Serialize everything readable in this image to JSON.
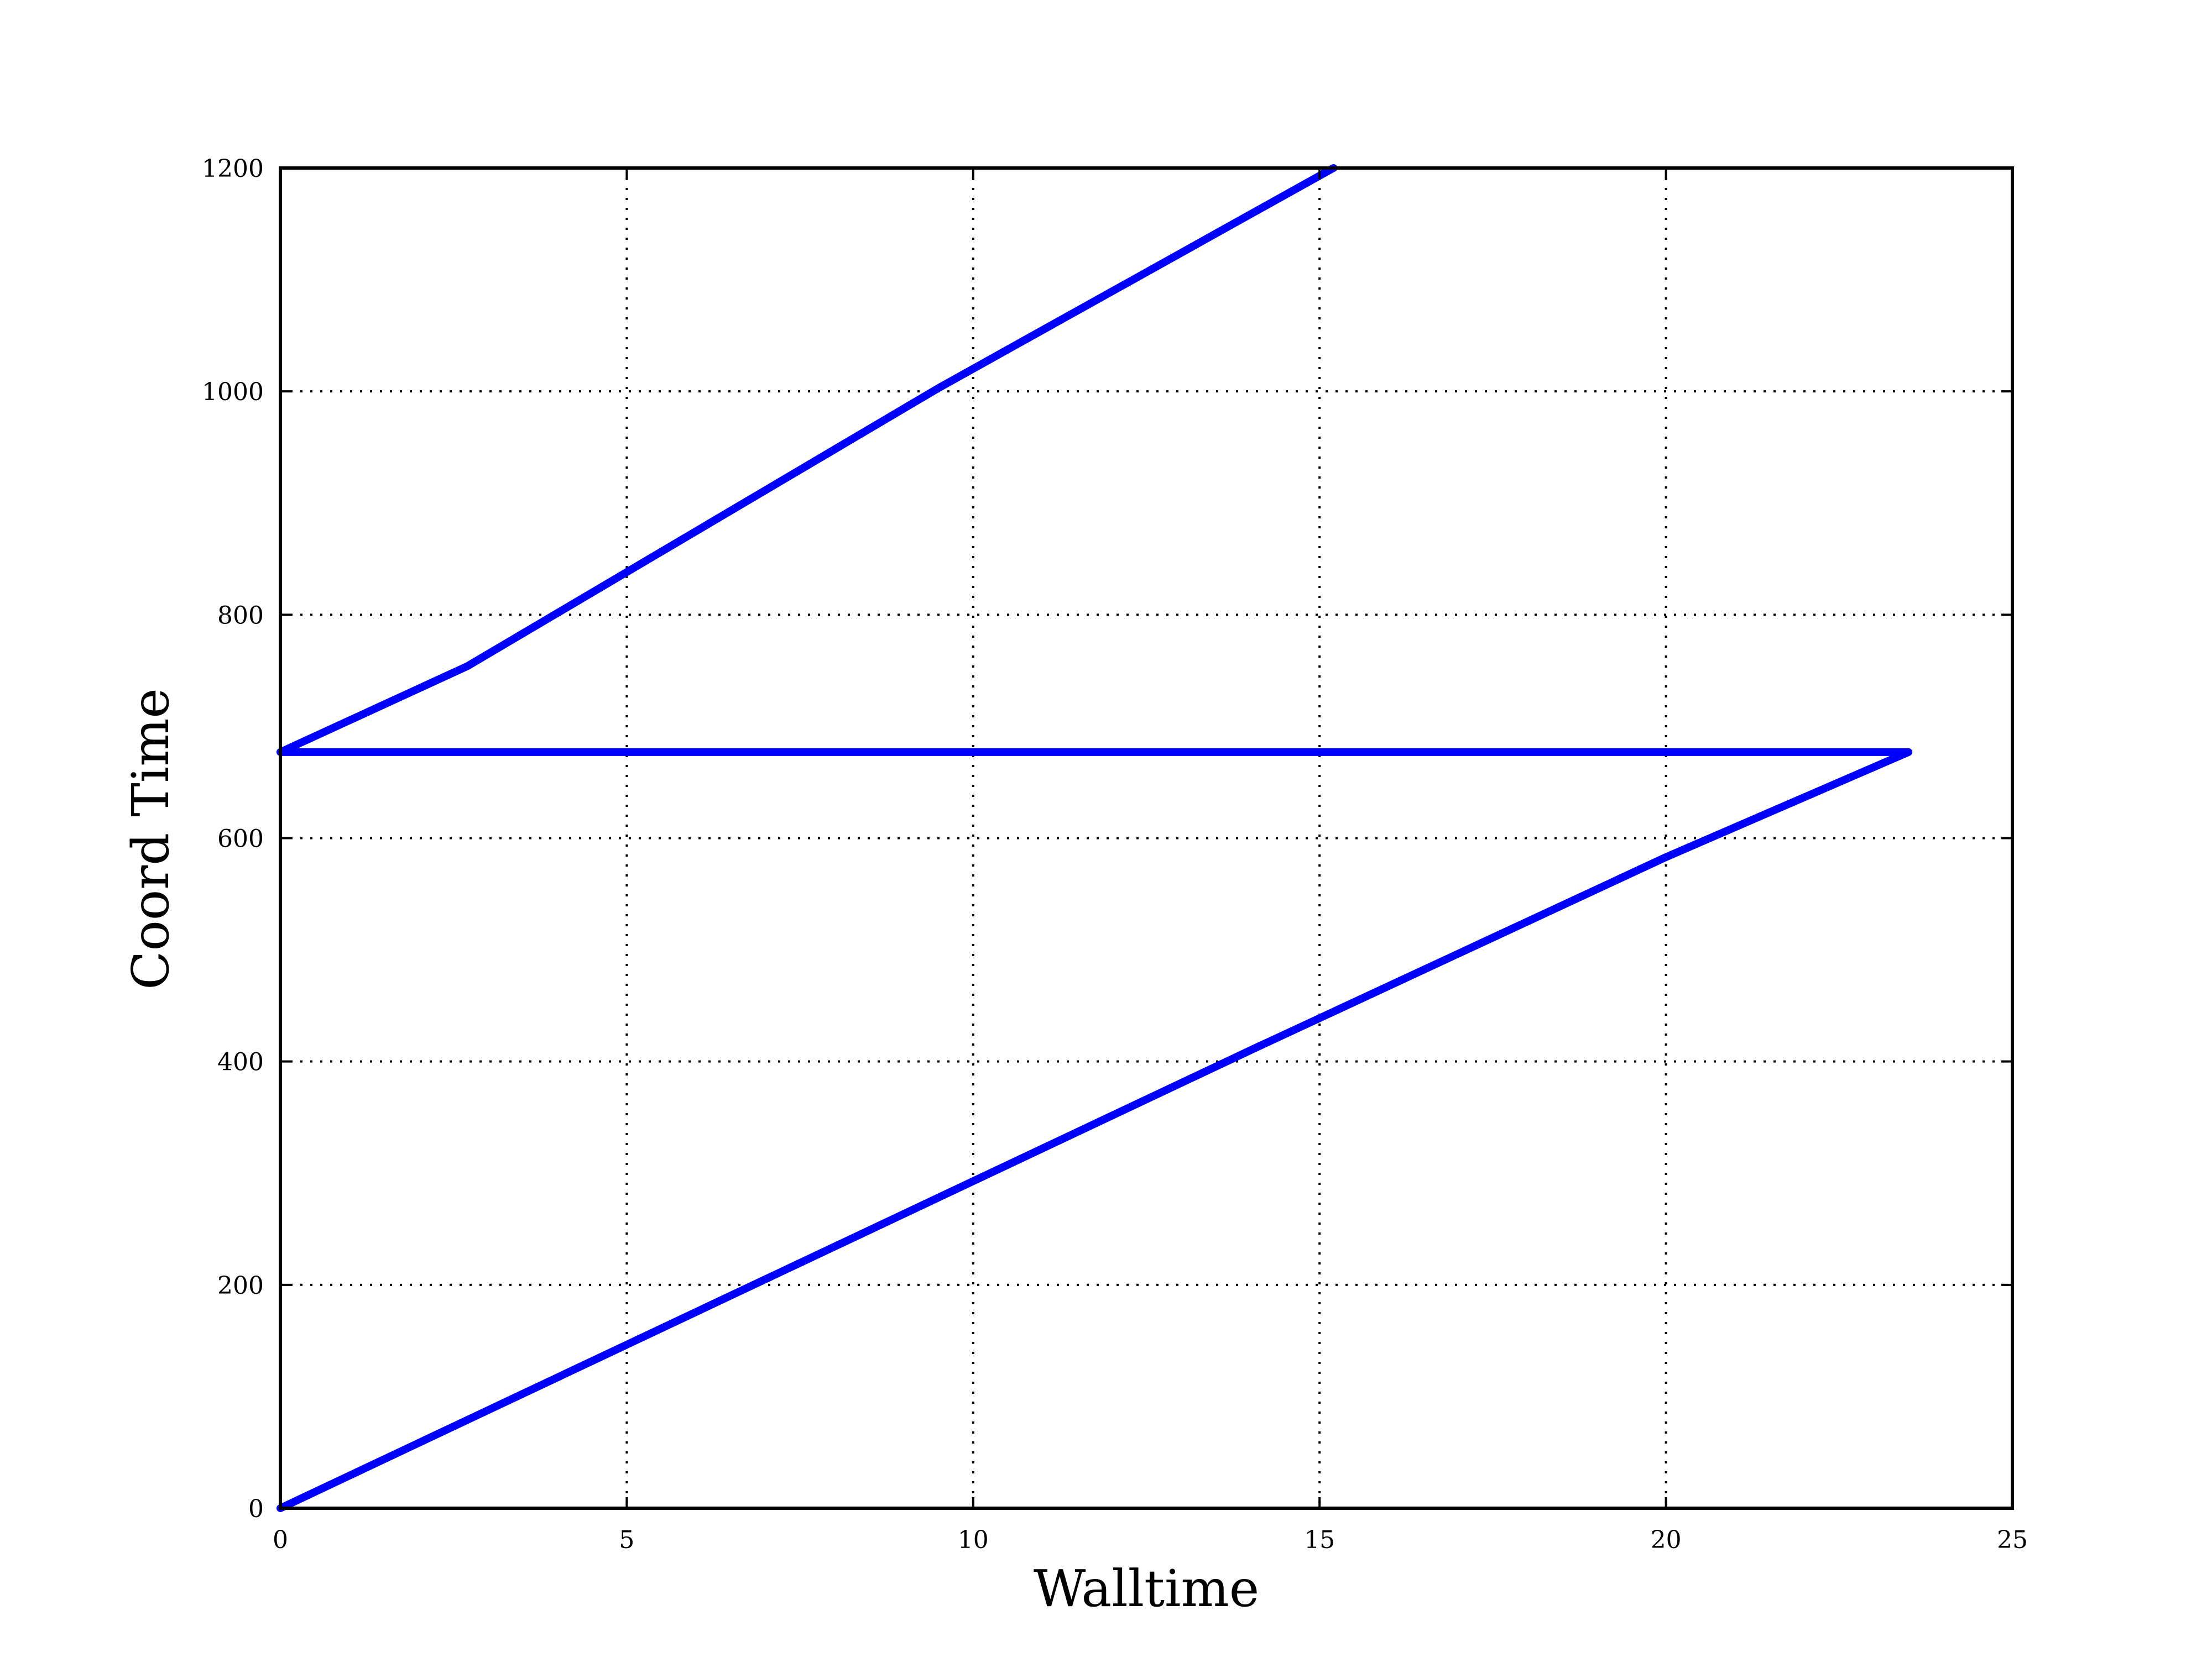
{
  "chart_data": {
    "type": "line",
    "title": "",
    "xlabel": "Walltime",
    "ylabel": "Coord Time",
    "xlim": [
      0,
      25
    ],
    "ylim": [
      0,
      1200
    ],
    "xticks": [
      "0",
      "5",
      "10",
      "15",
      "20",
      "25"
    ],
    "yticks": [
      "0",
      "200",
      "400",
      "600",
      "800",
      "1000",
      "1200"
    ],
    "grid": true,
    "series": [
      {
        "color": "#0000ff",
        "x": [
          0,
          7.0,
          14.0,
          20.0,
          23.5,
          0,
          2.7,
          9.5,
          15.2
        ],
        "y": [
          0,
          205,
          410,
          583,
          677,
          677,
          754,
          1003,
          1200
        ]
      }
    ]
  }
}
